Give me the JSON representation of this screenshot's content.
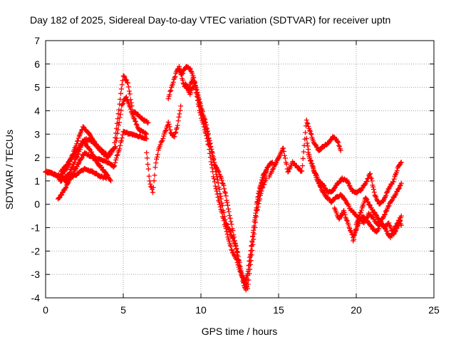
{
  "chart_data": {
    "type": "scatter",
    "title": "Day 182 of 2025, Sidereal Day-to-day VTEC variation (SDTVAR) for receiver uptn",
    "xlabel": "GPS time / hours",
    "ylabel": "SDTVAR / TECUs",
    "xlim": [
      0,
      25
    ],
    "ylim": [
      -4,
      7
    ],
    "xticks": [
      "0",
      "5",
      "10",
      "15",
      "20",
      "25"
    ],
    "yticks": [
      "-4",
      "-3",
      "-2",
      "-1",
      "0",
      "1",
      "2",
      "3",
      "4",
      "5",
      "6",
      "7"
    ],
    "grid": true,
    "marker": "+",
    "series": [
      {
        "name": "SDTVAR",
        "color": "#ff0000",
        "tracks": [
          [
            [
              0,
              1.4
            ],
            [
              0.5,
              1.3
            ],
            [
              1,
              1.2
            ],
            [
              1.5,
              1.7
            ],
            [
              2,
              2.6
            ],
            [
              2.4,
              3.3
            ],
            [
              2.8,
              3.0
            ],
            [
              3.2,
              2.6
            ],
            [
              3.6,
              2.3
            ],
            [
              4.0,
              2.1
            ],
            [
              4.4,
              2.4
            ],
            [
              4.8,
              4.5
            ],
            [
              5.0,
              5.5
            ],
            [
              5.3,
              5.2
            ],
            [
              5.6,
              4.0
            ],
            [
              6.0,
              3.8
            ],
            [
              6.3,
              3.6
            ],
            [
              6.6,
              3.5
            ]
          ],
          [
            [
              0,
              1.4
            ],
            [
              0.6,
              1.3
            ],
            [
              1,
              1.0
            ],
            [
              1.5,
              1.3
            ],
            [
              2,
              2.0
            ],
            [
              2.5,
              2.8
            ],
            [
              3,
              2.7
            ],
            [
              3.5,
              2.3
            ],
            [
              4,
              2.0
            ],
            [
              4.5,
              2.5
            ],
            [
              4.9,
              4.2
            ],
            [
              5.2,
              4.6
            ],
            [
              5.6,
              3.8
            ],
            [
              6.0,
              3.2
            ],
            [
              6.5,
              3.0
            ]
          ],
          [
            [
              0.8,
              0.2
            ],
            [
              1.2,
              0.6
            ],
            [
              1.6,
              1.1
            ],
            [
              2,
              1.6
            ],
            [
              2.5,
              2.2
            ],
            [
              3,
              2.0
            ],
            [
              3.5,
              1.9
            ],
            [
              4,
              1.8
            ],
            [
              4.4,
              1.6
            ],
            [
              4.8,
              2.5
            ],
            [
              5.0,
              3.1
            ],
            [
              5.5,
              3.0
            ],
            [
              6.0,
              2.9
            ],
            [
              6.5,
              2.8
            ]
          ],
          [
            [
              1.0,
              1.4
            ],
            [
              1.5,
              1.8
            ],
            [
              2.0,
              2.3
            ],
            [
              2.4,
              2.7
            ],
            [
              2.8,
              2.4
            ],
            [
              3.3,
              1.8
            ],
            [
              3.8,
              1.4
            ],
            [
              4.2,
              1.0
            ]
          ],
          [
            [
              1.2,
              1.0
            ],
            [
              1.8,
              1.2
            ],
            [
              2.5,
              1.5
            ],
            [
              3.0,
              1.4
            ],
            [
              3.5,
              1.2
            ],
            [
              3.9,
              1.1
            ]
          ],
          [
            [
              6.5,
              2.2
            ],
            [
              6.7,
              1.0
            ],
            [
              6.9,
              0.5
            ],
            [
              7.1,
              1.8
            ],
            [
              7.3,
              2.4
            ],
            [
              7.6,
              2.9
            ],
            [
              7.9,
              3.5
            ],
            [
              8.1,
              3.0
            ],
            [
              8.3,
              2.9
            ],
            [
              8.5,
              3.4
            ],
            [
              8.7,
              4.2
            ]
          ],
          [
            [
              7.9,
              4.5
            ],
            [
              8.1,
              5.0
            ],
            [
              8.3,
              5.4
            ],
            [
              8.5,
              5.8
            ],
            [
              8.8,
              5.6
            ],
            [
              9.1,
              5.9
            ],
            [
              9.4,
              5.7
            ],
            [
              9.7,
              5.0
            ],
            [
              10.0,
              4.2
            ],
            [
              10.3,
              3.5
            ],
            [
              10.6,
              2.6
            ],
            [
              10.9,
              1.7
            ],
            [
              11.2,
              1.3
            ],
            [
              11.5,
              0.7
            ],
            [
              11.8,
              -0.3
            ],
            [
              12.1,
              -1.3
            ],
            [
              12.4,
              -2.2
            ],
            [
              12.7,
              -3.3
            ],
            [
              12.9,
              -3.7
            ],
            [
              13.1,
              -2.6
            ],
            [
              13.4,
              -1.0
            ],
            [
              13.7,
              0.5
            ],
            [
              14.0,
              1.2
            ],
            [
              14.3,
              1.6
            ],
            [
              14.6,
              1.8
            ]
          ],
          [
            [
              8.6,
              5.9
            ],
            [
              8.9,
              5.1
            ],
            [
              9.2,
              4.9
            ],
            [
              9.5,
              5.4
            ],
            [
              9.8,
              4.6
            ],
            [
              10.1,
              3.8
            ],
            [
              10.4,
              3.1
            ],
            [
              10.7,
              2.2
            ],
            [
              11.0,
              1.3
            ],
            [
              11.3,
              0.2
            ],
            [
              11.6,
              -0.8
            ],
            [
              11.9,
              -1.2
            ],
            [
              12.2,
              -1.7
            ],
            [
              12.5,
              -2.7
            ],
            [
              12.8,
              -3.4
            ],
            [
              13.0,
              -3.0
            ],
            [
              13.3,
              -1.6
            ],
            [
              13.6,
              0.0
            ],
            [
              13.9,
              0.9
            ],
            [
              14.2,
              1.4
            ]
          ],
          [
            [
              9.0,
              5.2
            ],
            [
              9.3,
              4.7
            ],
            [
              9.6,
              5.2
            ],
            [
              9.9,
              4.0
            ],
            [
              10.2,
              3.3
            ],
            [
              10.5,
              2.5
            ],
            [
              10.8,
              1.2
            ],
            [
              11.1,
              0.3
            ],
            [
              11.4,
              -0.5
            ],
            [
              11.7,
              -1.3
            ],
            [
              12.0,
              -2.0
            ],
            [
              12.3,
              -2.4
            ],
            [
              12.6,
              -3.0
            ],
            [
              13.0,
              -3.6
            ],
            [
              13.3,
              -2.0
            ],
            [
              13.6,
              -0.3
            ],
            [
              13.9,
              0.6
            ],
            [
              14.2,
              1.1
            ]
          ],
          [
            [
              14.4,
              1.2
            ],
            [
              14.7,
              1.6
            ],
            [
              15.0,
              2.0
            ],
            [
              15.3,
              2.4
            ],
            [
              15.6,
              1.4
            ],
            [
              15.9,
              1.8
            ],
            [
              16.2,
              1.6
            ],
            [
              16.5,
              1.4
            ],
            [
              16.8,
              3.6
            ],
            [
              17.0,
              3.2
            ],
            [
              17.3,
              2.6
            ],
            [
              17.6,
              2.3
            ],
            [
              17.9,
              2.5
            ],
            [
              18.2,
              2.6
            ],
            [
              18.5,
              2.9
            ],
            [
              18.8,
              2.7
            ],
            [
              19.0,
              2.3
            ]
          ],
          [
            [
              16.8,
              2.8
            ],
            [
              17.0,
              2.0
            ],
            [
              17.3,
              1.4
            ],
            [
              17.6,
              1.0
            ],
            [
              17.9,
              0.8
            ],
            [
              18.2,
              0.5
            ],
            [
              18.5,
              0.6
            ],
            [
              18.8,
              0.9
            ],
            [
              19.1,
              1.1
            ],
            [
              19.4,
              1.0
            ],
            [
              19.7,
              0.6
            ],
            [
              20.0,
              0.5
            ],
            [
              20.3,
              0.6
            ],
            [
              20.6,
              0.9
            ],
            [
              20.9,
              1.3
            ],
            [
              21.2,
              0.4
            ],
            [
              21.5,
              0.0
            ],
            [
              21.8,
              0.2
            ],
            [
              22.1,
              0.7
            ],
            [
              22.4,
              1.0
            ],
            [
              22.7,
              1.6
            ],
            [
              22.9,
              1.8
            ]
          ],
          [
            [
              16.9,
              2.2
            ],
            [
              17.2,
              1.6
            ],
            [
              17.5,
              1.0
            ],
            [
              17.8,
              0.6
            ],
            [
              18.1,
              0.3
            ],
            [
              18.4,
              0.1
            ],
            [
              18.7,
              0.3
            ],
            [
              19.0,
              0.4
            ],
            [
              19.3,
              0.2
            ],
            [
              19.6,
              -0.2
            ],
            [
              19.9,
              -0.4
            ],
            [
              20.2,
              -0.6
            ],
            [
              20.5,
              -0.8
            ],
            [
              20.8,
              -0.4
            ],
            [
              21.1,
              -0.6
            ],
            [
              21.4,
              -0.9
            ],
            [
              21.7,
              -0.6
            ],
            [
              22.0,
              -0.2
            ],
            [
              22.3,
              0.2
            ],
            [
              22.6,
              0.5
            ],
            [
              22.9,
              0.9
            ]
          ],
          [
            [
              18.6,
              -0.2
            ],
            [
              18.9,
              -0.6
            ],
            [
              19.2,
              -0.3
            ],
            [
              19.5,
              -0.9
            ],
            [
              19.8,
              -1.4
            ],
            [
              20.1,
              -0.9
            ],
            [
              20.4,
              -0.5
            ],
            [
              20.7,
              -0.7
            ],
            [
              21.0,
              -1.0
            ],
            [
              21.3,
              -1.2
            ],
            [
              21.6,
              -0.8
            ],
            [
              21.9,
              -1.1
            ],
            [
              22.2,
              -1.4
            ],
            [
              22.5,
              -1.0
            ],
            [
              22.8,
              -0.6
            ],
            [
              22.9,
              -0.9
            ]
          ],
          [
            [
              19.8,
              -1.6
            ],
            [
              20.0,
              -0.9
            ],
            [
              20.3,
              -0.3
            ],
            [
              20.6,
              0.3
            ],
            [
              20.9,
              -0.1
            ],
            [
              21.2,
              -0.4
            ],
            [
              21.5,
              -0.7
            ],
            [
              21.8,
              -1.0
            ],
            [
              22.1,
              -0.8
            ],
            [
              22.4,
              -1.3
            ],
            [
              22.7,
              -0.9
            ],
            [
              22.9,
              -0.5
            ]
          ]
        ]
      }
    ]
  }
}
